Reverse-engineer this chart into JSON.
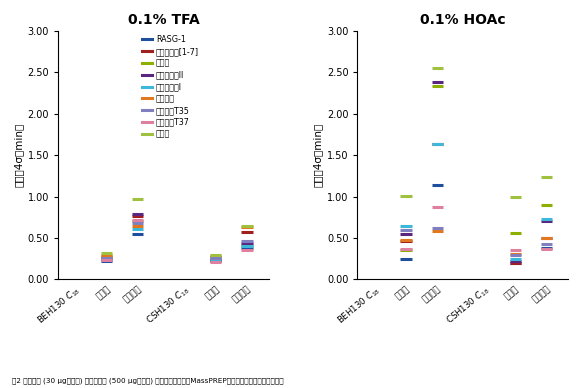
{
  "title_left": "0.1% TFA",
  "title_right": "0.1% HOAc",
  "ylabel": "峰宽（4σ，min）",
  "caption": "图2 在分析型 (30 μg混合物) 和半制备型 (500 μg混合物) 上样量下观察到的MassPREP肽混合物中各种物质的峰宽。",
  "ylim": [
    0.0,
    3.0
  ],
  "yticks": [
    0.0,
    0.5,
    1.0,
    1.5,
    2.0,
    2.5,
    3.0
  ],
  "xtick_labels": [
    "BEH130 C18",
    "分析型",
    "半制备型",
    "CSH130 C18",
    "分析型",
    "半制备型"
  ],
  "legend_labels": [
    "RASG-1",
    "血管紧张素[1-7]",
    "缓激肽",
    "血管紧张素II",
    "血管紧张素I",
    "肾素底物",
    "烯醇化醂T35",
    "烯醇化醂T37",
    "蜂毒肽"
  ],
  "colors": [
    "#1f4e9c",
    "#a02020",
    "#8db000",
    "#5a2680",
    "#3eb8d8",
    "#e07820",
    "#8080c0",
    "#e080a0",
    "#a0c040"
  ],
  "tfa_data": {
    "BEH130_C18": [
      null,
      null,
      null,
      null,
      null,
      null,
      null,
      null,
      null
    ],
    "BEH_analytical": [
      0.22,
      0.27,
      0.3,
      0.25,
      0.24,
      0.28,
      0.26,
      0.23,
      0.32
    ],
    "BEH_semiprep": [
      0.55,
      0.76,
      0.7,
      0.79,
      0.61,
      0.65,
      0.68,
      0.72,
      0.97
    ],
    "CSH130_C18": [
      null,
      null,
      null,
      null,
      null,
      null,
      null,
      null,
      null
    ],
    "CSH_analytical": [
      0.22,
      0.27,
      0.25,
      0.23,
      0.24,
      0.28,
      0.26,
      0.21,
      0.3
    ],
    "CSH_semiprep": [
      0.38,
      0.57,
      0.42,
      0.44,
      0.4,
      0.63,
      0.46,
      0.35,
      0.64
    ]
  },
  "hoac_data": {
    "BEH130_C18": [
      null,
      null,
      null,
      null,
      null,
      null,
      null,
      null,
      null
    ],
    "BEH_analytical": [
      0.25,
      0.46,
      0.35,
      0.55,
      0.65,
      0.48,
      0.6,
      0.37,
      1.01
    ],
    "BEH_semiprep": [
      1.14,
      1.63,
      2.33,
      2.39,
      1.63,
      0.58,
      0.62,
      0.87,
      2.55
    ],
    "CSH130_C18": [
      null,
      null,
      null,
      null,
      null,
      null,
      null,
      null,
      null
    ],
    "CSH_analytical": [
      0.2,
      0.2,
      0.56,
      0.22,
      0.24,
      0.31,
      0.29,
      0.35,
      0.99
    ],
    "CSH_semiprep": [
      0.38,
      0.5,
      0.9,
      0.7,
      0.73,
      0.5,
      0.43,
      0.37,
      1.24
    ]
  }
}
